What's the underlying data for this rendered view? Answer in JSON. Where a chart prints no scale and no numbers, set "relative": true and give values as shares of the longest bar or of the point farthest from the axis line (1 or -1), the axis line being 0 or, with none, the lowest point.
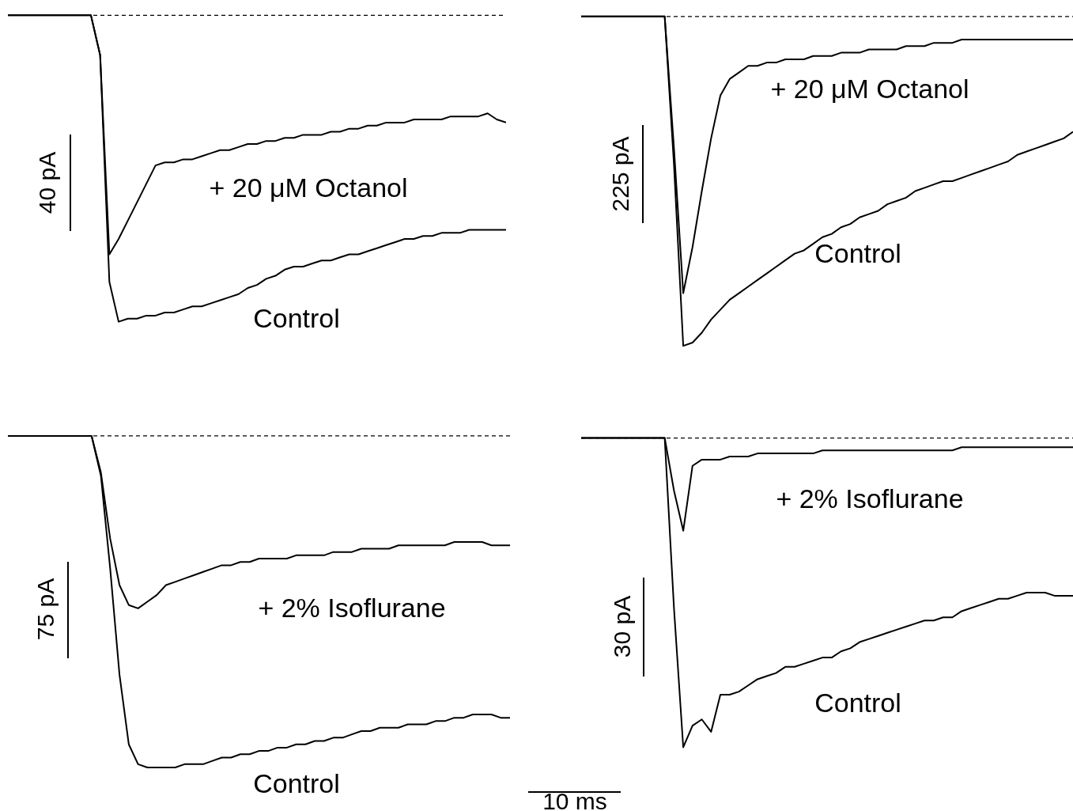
{
  "chart_data": [
    {
      "type": "line",
      "relative": true,
      "annotations": [
        "40 pA"
      ],
      "ref_lines": [
        {
          "axis": "y",
          "value": 0,
          "line_style": "dashed",
          "color": "#000000"
        }
      ],
      "categories": [
        null,
        null,
        null,
        null,
        null,
        null,
        null,
        null,
        null,
        null,
        null,
        null,
        null,
        null,
        null,
        null,
        null,
        null,
        null,
        null,
        null,
        null,
        null,
        null,
        null,
        null,
        null,
        null,
        null,
        null,
        null,
        null,
        null,
        null,
        null,
        null,
        null,
        null,
        null,
        null,
        null,
        null,
        null,
        null,
        null,
        null,
        null,
        null,
        null,
        null,
        null,
        null,
        null,
        null,
        null
      ],
      "series": [
        {
          "name": "+ 20 μM Octanol",
          "color": "#000000",
          "values": [
            0,
            0,
            0,
            0,
            0,
            0,
            0,
            0,
            0,
            0,
            -0.13,
            -0.78,
            -0.73,
            -0.67,
            -0.61,
            -0.55,
            -0.49,
            -0.48,
            -0.48,
            -0.47,
            -0.47,
            -0.46,
            -0.45,
            -0.44,
            -0.44,
            -0.43,
            -0.42,
            -0.42,
            -0.41,
            -0.41,
            -0.4,
            -0.4,
            -0.39,
            -0.39,
            -0.39,
            -0.38,
            -0.38,
            -0.37,
            -0.37,
            -0.36,
            -0.36,
            -0.35,
            -0.35,
            -0.35,
            -0.34,
            -0.34,
            -0.34,
            -0.34,
            -0.33,
            -0.33,
            -0.33,
            -0.33,
            -0.32,
            -0.34,
            -0.35
          ]
        },
        {
          "name": "Control",
          "color": "#000000",
          "values": [
            0,
            0,
            0,
            0,
            0,
            0,
            0,
            0,
            0,
            0,
            -0.13,
            -0.87,
            -1,
            -0.99,
            -0.99,
            -0.98,
            -0.98,
            -0.97,
            -0.97,
            -0.96,
            -0.95,
            -0.95,
            -0.94,
            -0.93,
            -0.92,
            -0.91,
            -0.89,
            -0.88,
            -0.86,
            -0.85,
            -0.83,
            -0.82,
            -0.82,
            -0.81,
            -0.8,
            -0.8,
            -0.79,
            -0.78,
            -0.78,
            -0.77,
            -0.76,
            -0.75,
            -0.74,
            -0.73,
            -0.73,
            -0.72,
            -0.72,
            -0.71,
            -0.71,
            -0.71,
            -0.7,
            -0.7,
            -0.7,
            -0.7,
            -0.7
          ]
        }
      ]
    },
    {
      "type": "line",
      "relative": true,
      "annotations": [
        "225 pA"
      ],
      "ref_lines": [
        {
          "axis": "y",
          "value": 0,
          "line_style": "dashed",
          "color": "#000000"
        }
      ],
      "categories": [
        null,
        null,
        null,
        null,
        null,
        null,
        null,
        null,
        null,
        null,
        null,
        null,
        null,
        null,
        null,
        null,
        null,
        null,
        null,
        null,
        null,
        null,
        null,
        null,
        null,
        null,
        null,
        null,
        null,
        null,
        null,
        null,
        null,
        null,
        null,
        null,
        null,
        null,
        null,
        null,
        null,
        null,
        null,
        null,
        null,
        null,
        null,
        null,
        null,
        null,
        null,
        null,
        null,
        null
      ],
      "series": [
        {
          "name": "+ 20 μM Octanol",
          "color": "#000000",
          "values": [
            0,
            0,
            0,
            0,
            0,
            0,
            0,
            0,
            0,
            0,
            -0.4,
            -0.84,
            -0.7,
            -0.53,
            -0.37,
            -0.24,
            -0.19,
            -0.17,
            -0.15,
            -0.15,
            -0.14,
            -0.14,
            -0.13,
            -0.13,
            -0.13,
            -0.12,
            -0.12,
            -0.12,
            -0.11,
            -0.11,
            -0.11,
            -0.1,
            -0.1,
            -0.1,
            -0.1,
            -0.09,
            -0.09,
            -0.09,
            -0.08,
            -0.08,
            -0.08,
            -0.07,
            -0.07,
            -0.07,
            -0.07,
            -0.07,
            -0.07,
            -0.07,
            -0.07,
            -0.07,
            -0.07,
            -0.07,
            -0.07,
            -0.07
          ]
        },
        {
          "name": "Control",
          "color": "#000000",
          "values": [
            0,
            0,
            0,
            0,
            0,
            0,
            0,
            0,
            0,
            0,
            -0.45,
            -1,
            -0.99,
            -0.96,
            -0.92,
            -0.89,
            -0.86,
            -0.84,
            -0.82,
            -0.8,
            -0.78,
            -0.76,
            -0.74,
            -0.72,
            -0.71,
            -0.69,
            -0.67,
            -0.66,
            -0.64,
            -0.63,
            -0.61,
            -0.6,
            -0.59,
            -0.57,
            -0.56,
            -0.55,
            -0.53,
            -0.52,
            -0.51,
            -0.5,
            -0.5,
            -0.49,
            -0.48,
            -0.47,
            -0.46,
            -0.45,
            -0.44,
            -0.42,
            -0.41,
            -0.4,
            -0.39,
            -0.38,
            -0.37,
            -0.35
          ]
        }
      ]
    },
    {
      "type": "line",
      "relative": true,
      "annotations": [
        "75 pA"
      ],
      "ref_lines": [
        {
          "axis": "y",
          "value": 0,
          "line_style": "dashed",
          "color": "#000000"
        }
      ],
      "categories": [
        null,
        null,
        null,
        null,
        null,
        null,
        null,
        null,
        null,
        null,
        null,
        null,
        null,
        null,
        null,
        null,
        null,
        null,
        null,
        null,
        null,
        null,
        null,
        null,
        null,
        null,
        null,
        null,
        null,
        null,
        null,
        null,
        null,
        null,
        null,
        null,
        null,
        null,
        null,
        null,
        null,
        null,
        null,
        null,
        null,
        null,
        null,
        null,
        null,
        null,
        null,
        null,
        null,
        null,
        null
      ],
      "series": [
        {
          "name": "+ 2% Isoflurane",
          "color": "#000000",
          "values": [
            0,
            0,
            0,
            0,
            0,
            0,
            0,
            0,
            0,
            0,
            -0.11,
            -0.31,
            -0.45,
            -0.51,
            -0.52,
            -0.5,
            -0.48,
            -0.45,
            -0.44,
            -0.43,
            -0.42,
            -0.41,
            -0.4,
            -0.39,
            -0.39,
            -0.38,
            -0.38,
            -0.37,
            -0.37,
            -0.37,
            -0.37,
            -0.36,
            -0.36,
            -0.36,
            -0.36,
            -0.35,
            -0.35,
            -0.35,
            -0.34,
            -0.34,
            -0.34,
            -0.34,
            -0.33,
            -0.33,
            -0.33,
            -0.33,
            -0.33,
            -0.33,
            -0.32,
            -0.32,
            -0.32,
            -0.32,
            -0.33,
            -0.33,
            -0.33
          ]
        },
        {
          "name": "Control",
          "color": "#000000",
          "values": [
            0,
            0,
            0,
            0,
            0,
            0,
            0,
            0,
            0,
            0,
            -0.12,
            -0.4,
            -0.72,
            -0.93,
            -0.99,
            -1,
            -1,
            -1,
            -1,
            -0.99,
            -0.99,
            -0.99,
            -0.98,
            -0.97,
            -0.97,
            -0.96,
            -0.96,
            -0.95,
            -0.95,
            -0.94,
            -0.94,
            -0.93,
            -0.93,
            -0.92,
            -0.92,
            -0.91,
            -0.91,
            -0.9,
            -0.89,
            -0.89,
            -0.88,
            -0.88,
            -0.88,
            -0.87,
            -0.87,
            -0.87,
            -0.86,
            -0.86,
            -0.85,
            -0.85,
            -0.84,
            -0.84,
            -0.84,
            -0.85,
            -0.85
          ]
        }
      ]
    },
    {
      "type": "line",
      "relative": true,
      "annotations": [
        "30 pA",
        "10 ms"
      ],
      "ref_lines": [
        {
          "axis": "y",
          "value": 0,
          "line_style": "dashed",
          "color": "#000000"
        }
      ],
      "categories": [
        null,
        null,
        null,
        null,
        null,
        null,
        null,
        null,
        null,
        null,
        null,
        null,
        null,
        null,
        null,
        null,
        null,
        null,
        null,
        null,
        null,
        null,
        null,
        null,
        null,
        null,
        null,
        null,
        null,
        null,
        null,
        null,
        null,
        null,
        null,
        null,
        null,
        null,
        null,
        null,
        null,
        null,
        null,
        null,
        null,
        null,
        null,
        null,
        null,
        null,
        null,
        null,
        null,
        null
      ],
      "series": [
        {
          "name": "+ 2% Isoflurane",
          "color": "#000000",
          "values": [
            0,
            0,
            0,
            0,
            0,
            0,
            0,
            0,
            0,
            0,
            -0.17,
            -0.3,
            -0.09,
            -0.07,
            -0.07,
            -0.07,
            -0.06,
            -0.06,
            -0.06,
            -0.05,
            -0.05,
            -0.05,
            -0.05,
            -0.05,
            -0.05,
            -0.05,
            -0.04,
            -0.04,
            -0.04,
            -0.04,
            -0.04,
            -0.04,
            -0.04,
            -0.04,
            -0.04,
            -0.04,
            -0.04,
            -0.04,
            -0.04,
            -0.04,
            -0.04,
            -0.03,
            -0.03,
            -0.03,
            -0.03,
            -0.03,
            -0.03,
            -0.03,
            -0.03,
            -0.03,
            -0.03,
            -0.03,
            -0.03,
            -0.03
          ]
        },
        {
          "name": "Control",
          "color": "#000000",
          "values": [
            0,
            0,
            0,
            0,
            0,
            0,
            0,
            0,
            0,
            0,
            -0.55,
            -1,
            -0.93,
            -0.91,
            -0.95,
            -0.83,
            -0.83,
            -0.82,
            -0.8,
            -0.78,
            -0.77,
            -0.76,
            -0.74,
            -0.74,
            -0.73,
            -0.72,
            -0.71,
            -0.71,
            -0.69,
            -0.68,
            -0.66,
            -0.65,
            -0.64,
            -0.63,
            -0.62,
            -0.61,
            -0.6,
            -0.59,
            -0.59,
            -0.58,
            -0.58,
            -0.56,
            -0.55,
            -0.54,
            -0.53,
            -0.52,
            -0.52,
            -0.51,
            -0.5,
            -0.5,
            -0.5,
            -0.51,
            -0.51,
            -0.51
          ]
        }
      ]
    }
  ]
}
